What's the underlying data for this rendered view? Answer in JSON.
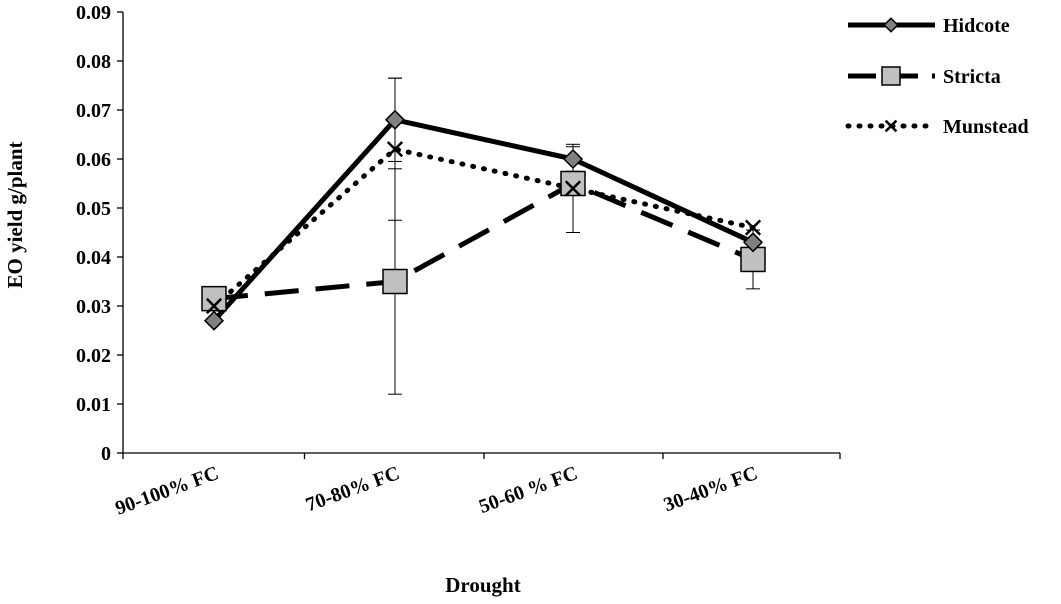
{
  "chart_data": {
    "type": "line",
    "categories": [
      "90-100% FC",
      "70-80% FC",
      "50-60 % FC",
      "30-40% FC"
    ],
    "xlabel": "Drought",
    "ylabel": "EO yield g/plant",
    "ylim": [
      0,
      0.09
    ],
    "yticks": [
      "0",
      "0.01",
      "0.02",
      "0.03",
      "0.04",
      "0.05",
      "0.06",
      "0.07",
      "0.08",
      "0.09"
    ],
    "grid": false,
    "legend_position": "top-right",
    "series": [
      {
        "name": "Hidcote",
        "values": [
          0.027,
          0.068,
          0.06,
          0.043
        ],
        "errors": [
          null,
          0.0085,
          0.0025,
          null
        ],
        "marker": "diamond",
        "line_style": "solid",
        "color": "#000000",
        "marker_fill": "#808080"
      },
      {
        "name": "Stricta",
        "values": [
          0.0315,
          0.035,
          0.055,
          0.0395
        ],
        "errors": [
          null,
          0.023,
          null,
          0.006
        ],
        "marker": "square",
        "line_style": "dashed",
        "color": "#000000",
        "marker_fill": "#c0c0c0"
      },
      {
        "name": "Munstead",
        "values": [
          0.03,
          0.062,
          0.054,
          0.046
        ],
        "errors": [
          null,
          0.0145,
          0.009,
          null
        ],
        "marker": "x",
        "line_style": "dotted",
        "color": "#000000",
        "marker_fill": "none"
      }
    ]
  }
}
